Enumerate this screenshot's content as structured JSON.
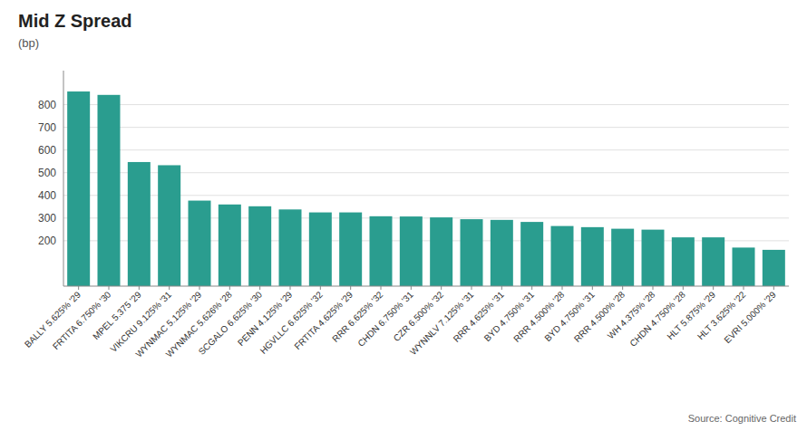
{
  "chart_data": {
    "type": "bar",
    "title": "Mid Z Spread",
    "subtitle": "(bp)",
    "source": "Source: Cognitive Credit",
    "categories": [
      "BALLY 5.625% '29",
      "FRTITA 6.750% '30",
      "MPEL 5.375 '29",
      "VIKCRU 9.125% '31",
      "WYNMAC 5.125% '29",
      "WYNMAC 5.626% '28",
      "SCGALO 6.625% '30",
      "PENN 4.125% '29",
      "HGVLLC 6.625% '32",
      "FRTITA 4.625% '29",
      "RRR 6.625% '32",
      "CHDN 6.750% '31",
      "CZR 6.500% '32",
      "WYNNLV 7.125% '31",
      "RRR 4.625% '31",
      "BYD 4.750% '31",
      "RRR 4.500% '28",
      "BYD 4.750% '31",
      "RRR 4.500% '28",
      "WH 4.375% '28",
      "CHDN 4.750% '28",
      "HLT 5.875% '29",
      "HLT 3.625% '22",
      "EVRI 5.000% '29"
    ],
    "values": [
      858,
      843,
      547,
      533,
      377,
      360,
      352,
      338,
      325,
      325,
      308,
      307,
      303,
      295,
      292,
      283,
      265,
      260,
      253,
      249,
      215,
      215,
      170,
      160
    ],
    "color": "#2a9d8f",
    "ylim": [
      0,
      950
    ],
    "yticks": [
      200,
      300,
      400,
      500,
      600,
      700,
      800
    ],
    "grid": true
  }
}
